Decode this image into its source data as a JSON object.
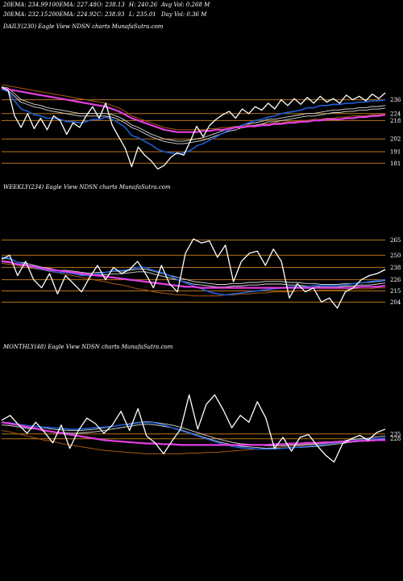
{
  "stats": {
    "row1": [
      "20EMA: 234.99",
      "100EMA: 227.48",
      "O: 238.13",
      "H: 240.26",
      "Avg Vol: 0.268  M"
    ],
    "row2": [
      "30EMA: 232.15",
      "200EMA: 224.92",
      "C: 238.93",
      "L: 235.01",
      "Day Vol: 0.36  M"
    ]
  },
  "colors": {
    "background": "#000000",
    "price": "#ffffff",
    "ema_short": "#1f5fd6",
    "ema_magenta": "#e23ee2",
    "ema_mid": "#d8d8d8",
    "ema_long": "#a85a10",
    "level_line": "#b8741a"
  },
  "chart_data": [
    {
      "type": "line",
      "title": "DAILY(230) Eagle  View  NDSN  charts MunafaSutra.com",
      "levels": [
        236,
        224,
        218,
        202,
        191,
        181
      ],
      "ylim": [
        170,
        256
      ],
      "series": [
        {
          "role": "price",
          "values": [
            247,
            244,
            222,
            212,
            224,
            211,
            220,
            210,
            222,
            218,
            206,
            216,
            212,
            222,
            230,
            220,
            233,
            214,
            204,
            194,
            178,
            195,
            188,
            183,
            176,
            179,
            186,
            190,
            188,
            200,
            213,
            204,
            214,
            219,
            223,
            226,
            220,
            228,
            224,
            230,
            227,
            233,
            228,
            236,
            231,
            237,
            232,
            238,
            233,
            239,
            234,
            237,
            233,
            240,
            236,
            239,
            235,
            241,
            237,
            242
          ]
        },
        {
          "role": "ema_short",
          "values": [
            245,
            243,
            235,
            228,
            226,
            223,
            222,
            220,
            220,
            219,
            217,
            217,
            216,
            217,
            219,
            219,
            221,
            219,
            216,
            212,
            205,
            203,
            200,
            197,
            193,
            191,
            190,
            189,
            190,
            192,
            196,
            198,
            201,
            204,
            207,
            210,
            212,
            214,
            216,
            218,
            219,
            221,
            222,
            224,
            225,
            226,
            227,
            229,
            229,
            231,
            231,
            232,
            232,
            233,
            233,
            234,
            234,
            235,
            235,
            236
          ]
        },
        {
          "role": "ema_mid",
          "values": [
            246,
            245,
            240,
            235,
            233,
            231,
            230,
            228,
            227,
            226,
            225,
            224,
            223,
            223,
            223,
            223,
            223,
            222,
            220,
            217,
            213,
            211,
            208,
            205,
            203,
            201,
            200,
            199,
            199,
            200,
            201,
            202,
            204,
            206,
            208,
            210,
            211,
            213,
            214,
            215,
            216,
            218,
            218,
            219,
            220,
            221,
            222,
            223,
            223,
            224,
            225,
            226,
            226,
            227,
            227,
            228,
            228,
            229,
            229,
            230
          ]
        },
        {
          "role": "ema_magenta",
          "values": [
            246,
            245,
            244,
            243,
            242,
            241,
            240,
            239,
            238,
            237,
            236,
            235,
            234,
            233,
            232,
            231,
            230,
            228,
            226,
            223,
            220,
            218,
            216,
            214,
            212,
            210,
            209,
            208,
            208,
            208,
            208,
            209,
            209,
            210,
            210,
            211,
            212,
            212,
            213,
            213,
            214,
            214,
            215,
            215,
            216,
            216,
            217,
            217,
            218,
            218,
            219,
            219,
            219,
            220,
            220,
            221,
            221,
            222,
            222,
            223
          ]
        },
        {
          "role": "ema_long",
          "values": [
            249,
            248,
            247,
            246,
            245,
            244,
            243,
            242,
            241,
            240,
            239,
            238,
            237,
            236,
            235,
            234,
            233,
            231,
            229,
            226,
            222,
            220,
            218,
            216,
            214,
            212,
            211,
            210,
            210,
            210,
            210,
            210,
            211,
            211,
            212,
            212,
            213,
            213,
            214,
            214,
            215,
            215,
            216,
            216,
            217,
            217,
            218,
            218,
            219,
            219,
            220,
            220,
            221,
            221,
            222,
            222,
            222,
            223,
            223,
            224
          ]
        }
      ]
    },
    {
      "type": "line",
      "title": "WEEKLY(234) Eagle  View  NDSN  charts MunafaSutra.com",
      "levels": [
        265,
        250,
        238,
        226,
        215,
        204
      ],
      "ylim": [
        190,
        274
      ],
      "series": [
        {
          "role": "price",
          "values": [
            246,
            250,
            230,
            244,
            226,
            218,
            232,
            212,
            230,
            222,
            214,
            228,
            240,
            226,
            238,
            232,
            236,
            244,
            232,
            218,
            240,
            222,
            214,
            252,
            266,
            262,
            264,
            248,
            260,
            224,
            244,
            252,
            254,
            240,
            256,
            244,
            208,
            222,
            214,
            218,
            204,
            208,
            198,
            214,
            218,
            226,
            230,
            232,
            236
          ]
        },
        {
          "role": "ema_short",
          "values": [
            248,
            247,
            243,
            241,
            238,
            236,
            235,
            233,
            233,
            232,
            230,
            230,
            232,
            233,
            235,
            235,
            236,
            238,
            238,
            235,
            233,
            230,
            226,
            223,
            220,
            217,
            214,
            212,
            211,
            212,
            213,
            214,
            215,
            216,
            217,
            218,
            219,
            219,
            219,
            220,
            220,
            220,
            220,
            221,
            222,
            223,
            224,
            225,
            226
          ]
        },
        {
          "role": "ema_mid",
          "values": [
            246,
            245,
            242,
            241,
            239,
            237,
            236,
            234,
            234,
            233,
            232,
            231,
            232,
            232,
            233,
            233,
            234,
            235,
            235,
            233,
            231,
            229,
            227,
            225,
            223,
            222,
            221,
            220,
            220,
            221,
            221,
            222,
            222,
            223,
            223,
            223,
            222,
            222,
            221,
            221,
            220,
            220,
            220,
            221,
            221,
            222,
            222,
            223,
            224
          ]
        },
        {
          "role": "ema_magenta",
          "values": [
            244,
            243,
            241,
            240,
            239,
            237,
            236,
            235,
            234,
            233,
            232,
            231,
            230,
            229,
            228,
            227,
            226,
            225,
            224,
            223,
            222,
            221,
            220,
            219,
            219,
            218,
            218,
            218,
            218,
            218,
            218,
            218,
            218,
            218,
            218,
            218,
            218,
            218,
            218,
            218,
            218,
            218,
            218,
            218,
            218,
            219,
            219,
            219,
            220
          ]
        },
        {
          "role": "ema_long",
          "values": [
            242,
            241,
            240,
            238,
            237,
            236,
            234,
            233,
            231,
            230,
            228,
            227,
            225,
            224,
            222,
            221,
            219,
            217,
            216,
            214,
            213,
            212,
            211,
            211,
            210,
            210,
            210,
            210,
            211,
            211,
            212,
            212,
            213,
            213,
            214,
            214,
            214,
            215,
            215,
            215,
            216,
            216,
            216,
            216,
            217,
            217,
            217,
            218,
            218
          ]
        }
      ]
    },
    {
      "type": "line",
      "title": "MONTHLY(48) Eagle  View  NDSN  charts MunafaSutra.com",
      "levels": [
        235,
        228
      ],
      "ylim": [
        150,
        310
      ],
      "series": [
        {
          "role": "price",
          "values": [
            255,
            262,
            248,
            236,
            252,
            238,
            222,
            248,
            214,
            240,
            258,
            250,
            236,
            248,
            268,
            240,
            272,
            232,
            222,
            206,
            225,
            242,
            292,
            242,
            278,
            292,
            270,
            244,
            262,
            252,
            282,
            258,
            214,
            230,
            210,
            230,
            234,
            218,
            204,
            194,
            221,
            228,
            233,
            226,
            237,
            242
          ]
        },
        {
          "role": "ema_short",
          "values": [
            252,
            251,
            249,
            247,
            246,
            245,
            244,
            243,
            242,
            242,
            243,
            244,
            245,
            246,
            248,
            249,
            251,
            252,
            251,
            248,
            244,
            240,
            236,
            232,
            228,
            224,
            220,
            217,
            215,
            214,
            213,
            213,
            213,
            214,
            215,
            216,
            217,
            218,
            220,
            222,
            223,
            225,
            226,
            227,
            228,
            229
          ]
        },
        {
          "role": "ema_mid",
          "values": [
            250,
            249,
            247,
            245,
            244,
            242,
            240,
            239,
            238,
            238,
            239,
            240,
            242,
            244,
            246,
            248,
            250,
            251,
            250,
            248,
            246,
            243,
            239,
            235,
            231,
            227,
            224,
            221,
            219,
            218,
            217,
            216,
            216,
            216,
            217,
            217,
            218,
            219,
            220,
            222,
            223,
            225,
            226,
            227,
            229,
            230
          ]
        },
        {
          "role": "ema_magenta",
          "values": [
            252,
            250,
            248,
            245,
            243,
            240,
            238,
            236,
            234,
            232,
            230,
            228,
            226,
            225,
            224,
            223,
            222,
            221,
            221,
            220,
            220,
            219,
            219,
            219,
            219,
            219,
            219,
            219,
            219,
            219,
            219,
            219,
            220,
            220,
            221,
            221,
            222,
            222,
            223,
            223,
            224,
            224,
            225,
            225,
            226,
            226
          ]
        },
        {
          "role": "ema_long",
          "values": [
            240,
            238,
            235,
            232,
            229,
            226,
            224,
            221,
            219,
            217,
            215,
            213,
            211,
            210,
            209,
            208,
            207,
            206,
            206,
            206,
            206,
            206,
            207,
            207,
            208,
            208,
            209,
            210,
            211,
            212,
            213,
            214,
            215,
            216,
            217,
            218,
            219,
            220,
            221,
            222,
            223,
            224,
            225,
            226,
            227,
            228
          ]
        }
      ]
    }
  ]
}
